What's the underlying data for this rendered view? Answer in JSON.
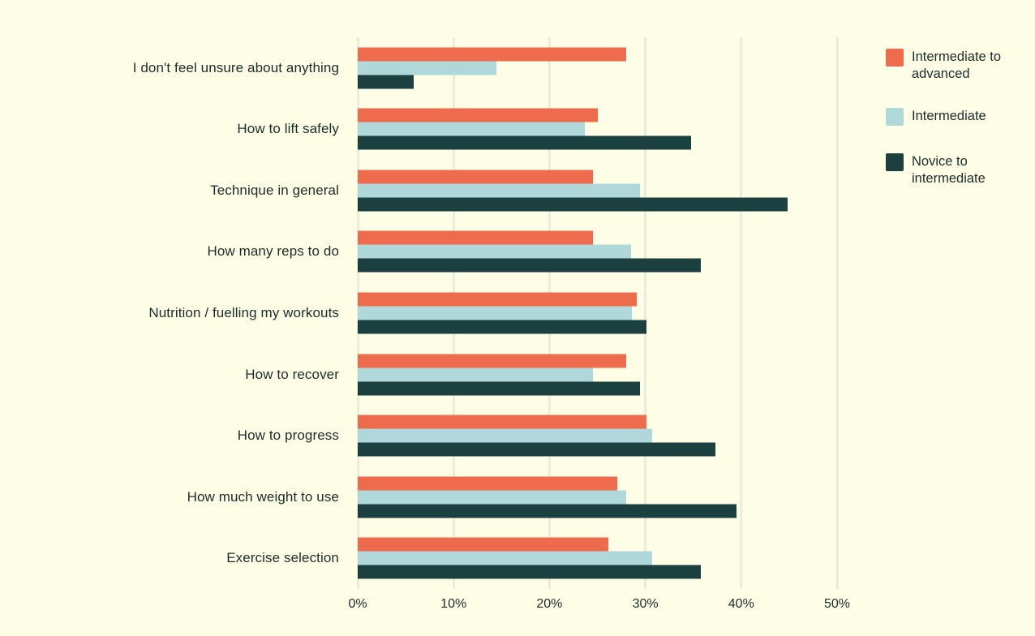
{
  "chart_data": {
    "type": "bar",
    "orientation": "horizontal",
    "title": "",
    "xlabel": "",
    "ylabel": "",
    "xlim": [
      0,
      50
    ],
    "x_tick_labels": [
      "0%",
      "10%",
      "20%",
      "30%",
      "40%",
      "50%"
    ],
    "x_tick_values": [
      0,
      10,
      20,
      30,
      40,
      50
    ],
    "grid": "vertical-gridlines",
    "legend_position": "right",
    "categories": [
      "I don't feel unsure about anything",
      "How to lift safely",
      "Technique in general",
      "How many reps to do",
      "Nutrition / fuelling my workouts",
      "How to recover",
      "How to progress",
      "How much weight to use",
      "Exercise selection"
    ],
    "series": [
      {
        "name": "Intermediate to advanced",
        "color": "#EE6C4D",
        "values": [
          28.0,
          25.0,
          24.5,
          24.5,
          29.1,
          28.0,
          30.1,
          27.1,
          26.1
        ]
      },
      {
        "name": "Intermediate",
        "color": "#B0D8DB",
        "values": [
          14.5,
          23.7,
          29.4,
          28.5,
          28.6,
          24.5,
          30.7,
          28.0,
          30.7
        ]
      },
      {
        "name": "Novice to intermediate",
        "color": "#1C4040",
        "values": [
          5.8,
          34.8,
          44.8,
          35.8,
          30.1,
          29.4,
          37.3,
          39.5,
          35.8
        ]
      }
    ],
    "colors": {
      "background": "#FDFEE5",
      "gridline": "#ECECDA",
      "text": "#1E2B2B"
    }
  }
}
